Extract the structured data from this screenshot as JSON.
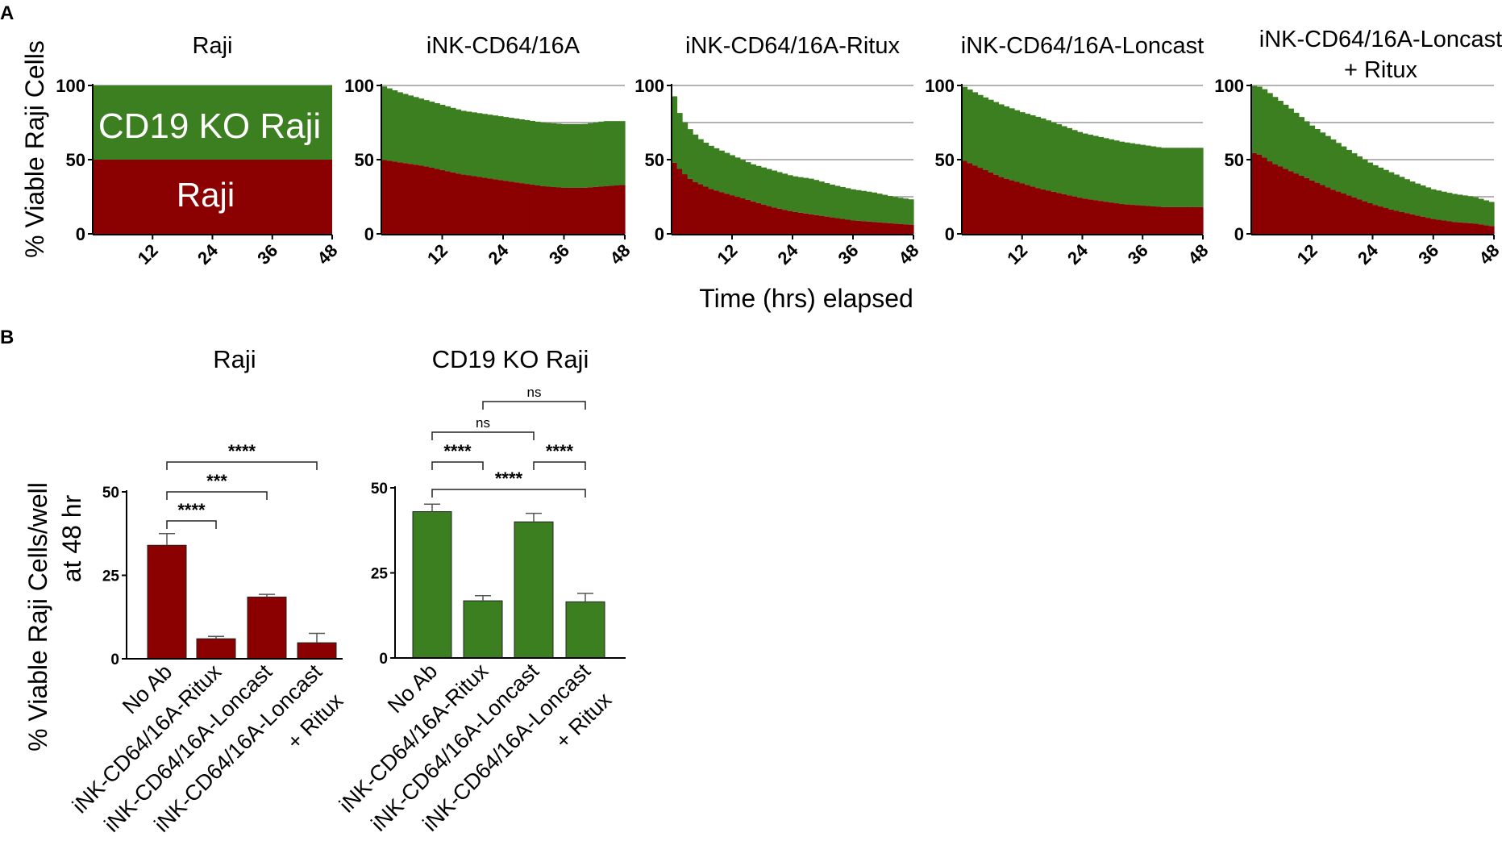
{
  "panel_labels": {
    "a": "A",
    "b": "B"
  },
  "colors": {
    "raji": "#8b0000",
    "ko": "#3c7f21",
    "axis": "#000000",
    "grid": "#9a9a9a",
    "text": "#111111"
  },
  "panel_a": {
    "ylabel": "% Viable Raji Cells",
    "xlabel": "Time (hrs) elapsed",
    "y_ticks": [
      "0",
      "50",
      "100"
    ],
    "x_ticks": [
      "12",
      "24",
      "36",
      "48"
    ],
    "overlay_labels": {
      "ko": "CD19 KO Raji",
      "raji": "Raji"
    }
  },
  "panel_b": {
    "ylabel_line1": "% Viable Raji Cells/well",
    "ylabel_line2": "at 48 hr"
  },
  "chart_data": [
    {
      "type": "area",
      "title": "Raji",
      "xlabel": "Time (hrs) elapsed",
      "ylabel": "% Viable Raji Cells",
      "ylim": [
        0,
        100
      ],
      "xlim": [
        0,
        48
      ],
      "x_ticks": [
        12,
        24,
        36,
        48
      ],
      "time_hrs": [
        0,
        8,
        16,
        24,
        32,
        40,
        48
      ],
      "series": [
        {
          "name": "Raji",
          "values": [
            50,
            50,
            50,
            50,
            50,
            50,
            50
          ]
        },
        {
          "name": "CD19 KO Raji",
          "values": [
            50,
            50,
            50,
            50,
            50,
            50,
            50
          ]
        }
      ]
    },
    {
      "type": "area",
      "title": "iNK-CD64/16A",
      "ylim": [
        0,
        100
      ],
      "xlim": [
        0,
        48
      ],
      "time_hrs": [
        0,
        4,
        8,
        12,
        16,
        20,
        24,
        28,
        32,
        36,
        40,
        44,
        48
      ],
      "series": [
        {
          "name": "Raji",
          "values": [
            50,
            48,
            46,
            43,
            40,
            38,
            36,
            34,
            32,
            31,
            31,
            32,
            33
          ]
        },
        {
          "name": "CD19 KO Raji",
          "values": [
            50,
            47,
            45,
            44,
            43,
            43,
            43,
            43,
            43,
            43,
            43,
            44,
            43
          ]
        }
      ]
    },
    {
      "type": "area",
      "title": "iNK-CD64/16A-Ritux",
      "ylim": [
        0,
        100
      ],
      "xlim": [
        0,
        48
      ],
      "time_hrs": [
        0,
        1,
        2,
        4,
        6,
        8,
        12,
        16,
        20,
        24,
        28,
        32,
        36,
        40,
        44,
        48
      ],
      "series": [
        {
          "name": "Raji",
          "values": [
            50,
            46,
            42,
            36,
            33,
            30,
            26,
            22,
            18,
            15,
            13,
            11,
            9,
            8,
            7,
            6
          ]
        },
        {
          "name": "CD19 KO Raji",
          "values": [
            50,
            40,
            36,
            33,
            30,
            29,
            27,
            25,
            25,
            24,
            24,
            22,
            21,
            20,
            18,
            17
          ]
        }
      ]
    },
    {
      "type": "area",
      "title": "iNK-CD64/16A-Loncast",
      "ylim": [
        0,
        100
      ],
      "xlim": [
        0,
        48
      ],
      "time_hrs": [
        0,
        4,
        8,
        12,
        16,
        20,
        24,
        28,
        32,
        36,
        40,
        44,
        48
      ],
      "series": [
        {
          "name": "Raji",
          "values": [
            50,
            44,
            38,
            34,
            30,
            27,
            24,
            22,
            20,
            19,
            18,
            18,
            18
          ]
        },
        {
          "name": "CD19 KO Raji",
          "values": [
            50,
            49,
            49,
            48,
            48,
            46,
            44,
            43,
            42,
            41,
            40,
            40,
            40
          ]
        }
      ]
    },
    {
      "type": "area",
      "title": "iNK-CD64/16A-Loncast\n+ Ritux",
      "ylim": [
        0,
        100
      ],
      "xlim": [
        0,
        48
      ],
      "time_hrs": [
        0,
        2,
        4,
        8,
        12,
        16,
        20,
        24,
        28,
        32,
        36,
        40,
        44,
        48
      ],
      "series": [
        {
          "name": "Raji",
          "values": [
            55,
            53,
            48,
            42,
            36,
            30,
            25,
            20,
            16,
            13,
            10,
            8,
            7,
            5
          ]
        },
        {
          "name": "CD19 KO Raji",
          "values": [
            45,
            46,
            46,
            42,
            37,
            34,
            30,
            27,
            25,
            22,
            20,
            19,
            18,
            16
          ]
        }
      ]
    },
    {
      "type": "bar",
      "title": "Raji",
      "ylabel": "% Viable Raji Cells/well at 48 hr",
      "ylim": [
        0,
        50
      ],
      "y_ticks": [
        0,
        25,
        50
      ],
      "categories": [
        "No Ab",
        "iNK-CD64/16A-Ritux",
        "iNK-CD64/16A-Loncast",
        "iNK-CD64/16A-Loncast\n+ Ritux"
      ],
      "values": [
        34,
        6,
        18.5,
        4.8
      ],
      "errors": [
        3.5,
        0.7,
        0.8,
        2.8
      ],
      "significance": [
        {
          "from": 0,
          "to": 1,
          "label": "****"
        },
        {
          "from": 0,
          "to": 2,
          "label": "***"
        },
        {
          "from": 0,
          "to": 3,
          "label": "****"
        }
      ]
    },
    {
      "type": "bar",
      "title": "CD19 KO Raji",
      "ylim": [
        0,
        50
      ],
      "y_ticks": [
        0,
        25,
        50
      ],
      "categories": [
        "No Ab",
        "iNK-CD64/16A-Ritux",
        "iNK-CD64/16A-Loncast",
        "iNK-CD64/16A-Loncast\n+ Ritux"
      ],
      "values": [
        43,
        16.8,
        40,
        16.5
      ],
      "errors": [
        2.2,
        1.5,
        2.5,
        2.5
      ],
      "significance": [
        {
          "from": 0,
          "to": 1,
          "label": "****"
        },
        {
          "from": 2,
          "to": 3,
          "label": "****"
        },
        {
          "from": 0,
          "to": 3,
          "label": "****"
        },
        {
          "from": 0,
          "to": 2,
          "label": "ns"
        },
        {
          "from": 1,
          "to": 3,
          "label": "ns"
        }
      ]
    }
  ]
}
